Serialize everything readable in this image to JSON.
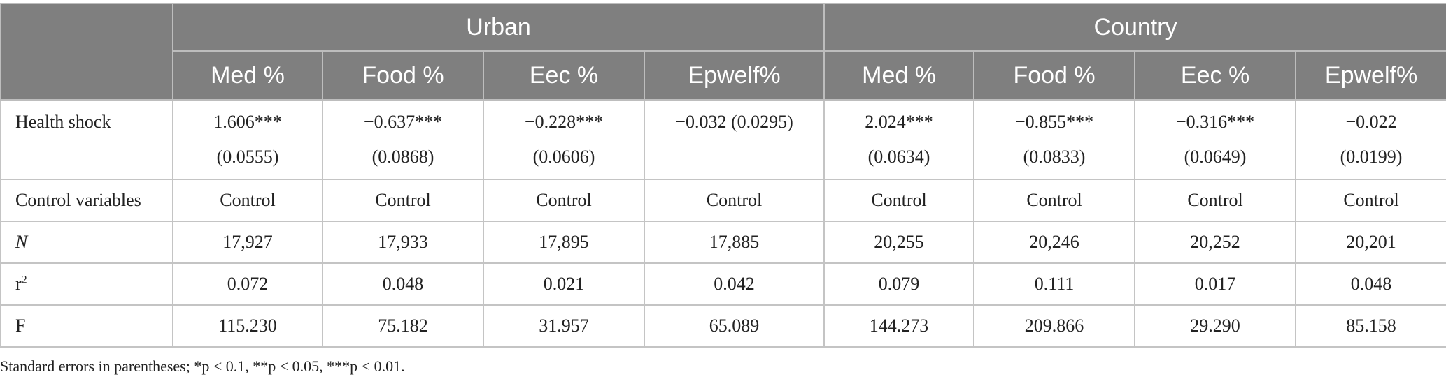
{
  "table": {
    "groups": [
      "Urban",
      "Country"
    ],
    "columns": [
      "Med %",
      "Food %",
      "Eec %",
      "Epwelf%",
      "Med %",
      "Food %",
      "Eec %",
      "Epwelf%"
    ],
    "rows": {
      "health_shock": {
        "label": "Health shock",
        "coefs": [
          "1.606***",
          "−0.637***",
          "−0.228***",
          "−0.032 (0.0295)",
          "2.024***",
          "−0.855***",
          "−0.316***",
          "−0.022"
        ],
        "ses": [
          "(0.0555)",
          "(0.0868)",
          "(0.0606)",
          "",
          "(0.0634)",
          "(0.0833)",
          "(0.0649)",
          "(0.0199)"
        ]
      },
      "control": {
        "label": "Control variables",
        "values": [
          "Control",
          "Control",
          "Control",
          "Control",
          "Control",
          "Control",
          "Control",
          "Control"
        ]
      },
      "n": {
        "label": "N",
        "values": [
          "17,927",
          "17,933",
          "17,895",
          "17,885",
          "20,255",
          "20,246",
          "20,252",
          "20,201"
        ]
      },
      "r2": {
        "label": "r",
        "label_sup": "2",
        "values": [
          "0.072",
          "0.048",
          "0.021",
          "0.042",
          "0.079",
          "0.111",
          "0.017",
          "0.048"
        ]
      },
      "f": {
        "label": "F",
        "values": [
          "115.230",
          "75.182",
          "31.957",
          "65.089",
          "144.273",
          "209.866",
          "29.290",
          "85.158"
        ]
      }
    },
    "note": "Standard errors in parentheses; *p < 0.1, **p < 0.05, ***p < 0.01."
  },
  "colors": {
    "header_bg": "#7f7f7f",
    "header_text": "#ffffff",
    "border": "#c4c4c4"
  }
}
